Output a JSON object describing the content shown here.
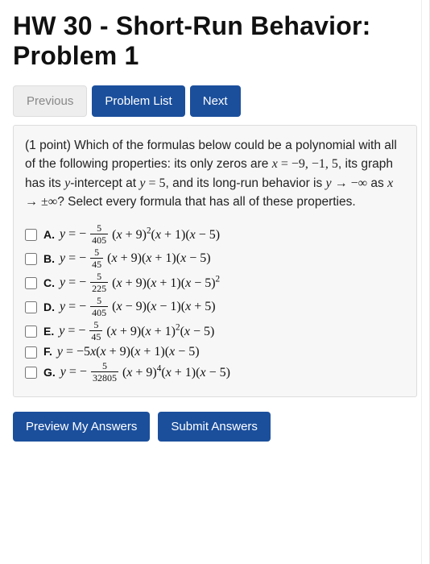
{
  "title": "HW 30 - Short-Run Behavior: Problem 1",
  "nav": {
    "previous": "Previous",
    "problem_list": "Problem List",
    "next": "Next"
  },
  "problem": {
    "points_prefix": "(1 point) ",
    "text_1": "Which of the formulas below could be a polynomial with all of the following properties: its only zeros are ",
    "zeros_expr": "x = −9, −1, 5",
    "text_2": ", its graph has its ",
    "yint_word": "y",
    "text_2b": "-intercept at ",
    "yint_expr": "y = 5",
    "text_3": ", and its long-run behavior is ",
    "limit_expr": "y → −∞",
    "text_4": " as ",
    "limit_x": "x → ±∞",
    "text_5": "? Select every formula that has all of these properties."
  },
  "options": [
    {
      "key": "A.",
      "num": "5",
      "den": "405",
      "poly": "(x + 9)²(x + 1)(x − 5)"
    },
    {
      "key": "B.",
      "num": "5",
      "den": "45",
      "poly": "(x + 9)(x + 1)(x − 5)"
    },
    {
      "key": "C.",
      "num": "5",
      "den": "225",
      "poly": "(x + 9)(x + 1)(x − 5)²"
    },
    {
      "key": "D.",
      "num": "5",
      "den": "405",
      "poly": "(x − 9)(x − 1)(x + 5)"
    },
    {
      "key": "E.",
      "num": "5",
      "den": "45",
      "poly": "(x + 9)(x + 1)²(x − 5)"
    },
    {
      "key": "F.",
      "coeff": "−5x",
      "poly": "(x + 9)(x + 1)(x − 5)"
    },
    {
      "key": "G.",
      "num": "5",
      "den": "32805",
      "poly": "(x + 9)⁴(x + 1)(x − 5)"
    }
  ],
  "buttons": {
    "preview": "Preview My Answers",
    "submit": "Submit Answers"
  },
  "colors": {
    "blue": "#1b4f9c",
    "gray_btn": "#eeeeee",
    "box_bg": "#f7f7f7",
    "box_border": "#dddddd"
  }
}
